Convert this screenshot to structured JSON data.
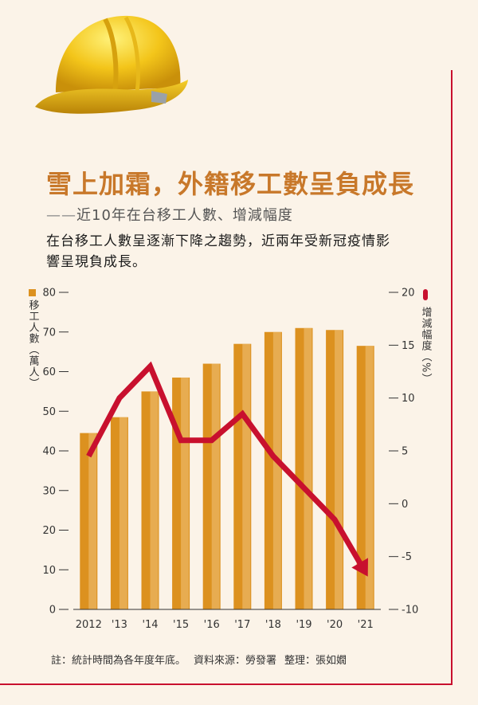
{
  "title": "雪上加霜，外籍移工數呈負成長",
  "subtitle": "近10年在台移工人數、增減幅度",
  "description": "在台移工人數呈逐漸下降之趨勢，近兩年受新冠疫情影響呈現負成長。",
  "footnote": {
    "note": "註：統計時間為各年度年底。",
    "source": "資料來源：勞發署",
    "compiler": "整理：張如嫺"
  },
  "colors": {
    "bar": "#dc911f",
    "bar_highlight": "#f0c27a",
    "line": "#c8102e",
    "title": "#c8782a",
    "rule": "#c8102e"
  },
  "chart_data": {
    "type": "bar+line",
    "categories": [
      "2012",
      "'13",
      "'14",
      "'15",
      "'16",
      "'17",
      "'18",
      "'19",
      "'20",
      "'21"
    ],
    "series": [
      {
        "name": "移工人數（萬人）",
        "type": "bar",
        "axis": "left",
        "values": [
          44.5,
          48.5,
          55,
          58.5,
          62,
          67,
          70,
          71,
          70.5,
          66.5
        ]
      },
      {
        "name": "增減幅度（%）",
        "type": "line",
        "axis": "right",
        "values": [
          4.5,
          10,
          13,
          6,
          6,
          8.5,
          4.5,
          1.5,
          -1.5,
          -6.5
        ]
      }
    ],
    "left_axis": {
      "label": "移工人數（萬人）",
      "range": [
        0,
        80
      ],
      "ticks": [
        0,
        10,
        20,
        30,
        40,
        50,
        60,
        70,
        80
      ]
    },
    "right_axis": {
      "label": "增減幅度（%）",
      "range": [
        -10,
        20
      ],
      "ticks": [
        -10,
        -5,
        0,
        5,
        10,
        15,
        20
      ]
    },
    "grid": false
  }
}
